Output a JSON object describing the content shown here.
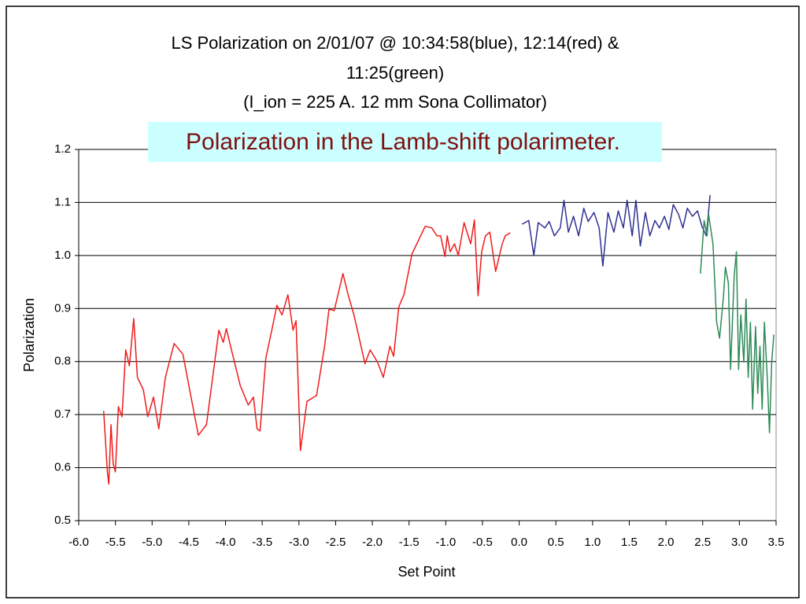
{
  "chart_data": {
    "type": "line",
    "title": [
      "LS Polarization on 2/01/07 @ 10:34:58(blue), 12:14(red) &",
      "11:25(green)",
      "(I_ion = 225 A. 12 mm Sona Collimator)"
    ],
    "annotation": "Polarization in the Lamb-shift polarimeter.",
    "xlabel": "Set Point",
    "ylabel": "Polarization",
    "xlim": [
      -6,
      3.5
    ],
    "ylim": [
      0.5,
      1.2
    ],
    "xticks": [
      {
        "value": -6,
        "label": "-6.0"
      },
      -5.5,
      {
        "value": -5,
        "label": "-5.0"
      },
      -4.5,
      {
        "value": -4,
        "label": "-4.0"
      },
      -3.5,
      {
        "value": -3,
        "label": "-3.0"
      },
      -2.5,
      {
        "value": -2,
        "label": "-2.0"
      },
      -1.5,
      {
        "value": -1,
        "label": "-1.0"
      },
      -0.5,
      {
        "value": 0,
        "label": "0.0"
      },
      0.5,
      {
        "value": 1,
        "label": "1.0"
      },
      1.5,
      {
        "value": 2,
        "label": "2.0"
      },
      2.5,
      {
        "value": 3,
        "label": "3.0"
      },
      3.5
    ],
    "yticks": [
      0.5,
      0.6,
      0.7,
      0.8,
      0.9,
      {
        "value": 1,
        "label": "1.0"
      },
      1.1,
      1.2
    ],
    "grid": true,
    "series": [
      {
        "color": "#ee1c1c",
        "x": [
          -5.66,
          -5.61,
          -5.59,
          -5.56,
          -5.53,
          -5.5,
          -5.46,
          -5.41,
          -5.36,
          -5.31,
          -5.25,
          -5.2,
          -5.12,
          -5.06,
          -4.98,
          -4.91,
          -4.82,
          -4.7,
          -4.58,
          -4.5,
          -4.37,
          -4.26,
          -4.09,
          -4.03,
          -3.99,
          -3.91,
          -3.8,
          -3.69,
          -3.62,
          -3.57,
          -3.53,
          -3.45,
          -3.37,
          -3.3,
          -3.23,
          -3.15,
          -3.08,
          -3.04,
          -2.98,
          -2.89,
          -2.76,
          -2.65,
          -2.59,
          -2.52,
          -2.4,
          -2.33,
          -2.25,
          -2.1,
          -2.03,
          -1.93,
          -1.85,
          -1.76,
          -1.71,
          -1.64,
          -1.57,
          -1.52,
          -1.46,
          -1.37,
          -1.28,
          -1.19,
          -1.12,
          -1.07,
          -1.01,
          -0.98,
          -0.94,
          -0.88,
          -0.83,
          -0.75,
          -0.66,
          -0.61,
          -0.56,
          -0.51,
          -0.46,
          -0.4,
          -0.32,
          -0.23,
          -0.19,
          -0.12
        ],
        "values": [
          0.707,
          0.592,
          0.569,
          0.681,
          0.607,
          0.592,
          0.715,
          0.696,
          0.822,
          0.792,
          0.881,
          0.77,
          0.747,
          0.696,
          0.733,
          0.673,
          0.77,
          0.834,
          0.814,
          0.755,
          0.661,
          0.681,
          0.859,
          0.836,
          0.862,
          0.817,
          0.755,
          0.718,
          0.733,
          0.673,
          0.669,
          0.807,
          0.859,
          0.906,
          0.888,
          0.926,
          0.859,
          0.877,
          0.632,
          0.725,
          0.736,
          0.829,
          0.899,
          0.896,
          0.966,
          0.926,
          0.888,
          0.796,
          0.822,
          0.799,
          0.77,
          0.829,
          0.81,
          0.903,
          0.926,
          0.96,
          1.003,
          1.029,
          1.055,
          1.052,
          1.037,
          1.037,
          0.998,
          1.037,
          1.007,
          1.022,
          1.0,
          1.062,
          1.022,
          1.067,
          0.924,
          1.007,
          1.037,
          1.044,
          0.97,
          1.022,
          1.037,
          1.043
        ]
      },
      {
        "color": "#2e3192",
        "x": [
          0.04,
          0.13,
          0.2,
          0.26,
          0.35,
          0.41,
          0.48,
          0.56,
          0.61,
          0.67,
          0.74,
          0.81,
          0.88,
          0.94,
          1.02,
          1.09,
          1.14,
          1.21,
          1.29,
          1.35,
          1.42,
          1.47,
          1.54,
          1.59,
          1.65,
          1.72,
          1.78,
          1.85,
          1.91,
          1.98,
          2.04,
          2.1,
          2.17,
          2.23,
          2.29,
          2.36,
          2.43,
          2.49,
          2.55,
          2.6
        ],
        "values": [
          1.059,
          1.066,
          1.0,
          1.062,
          1.052,
          1.064,
          1.037,
          1.052,
          1.104,
          1.044,
          1.074,
          1.037,
          1.089,
          1.064,
          1.081,
          1.052,
          0.98,
          1.081,
          1.044,
          1.084,
          1.052,
          1.104,
          1.037,
          1.104,
          1.018,
          1.081,
          1.037,
          1.066,
          1.052,
          1.074,
          1.049,
          1.096,
          1.078,
          1.052,
          1.089,
          1.074,
          1.084,
          1.055,
          1.037,
          1.114
        ]
      },
      {
        "color": "#2e8b57",
        "x": [
          2.47,
          2.52,
          2.56,
          2.58,
          2.64,
          2.69,
          2.73,
          2.78,
          2.81,
          2.85,
          2.88,
          2.93,
          2.96,
          2.99,
          3.02,
          3.06,
          3.09,
          3.12,
          3.15,
          3.18,
          3.22,
          3.25,
          3.28,
          3.31,
          3.34,
          3.38,
          3.41,
          3.44,
          3.47
        ],
        "values": [
          0.966,
          1.066,
          1.037,
          1.078,
          1.022,
          0.874,
          0.844,
          0.918,
          0.978,
          0.948,
          0.785,
          0.963,
          1.007,
          0.785,
          0.888,
          0.799,
          0.918,
          0.77,
          0.874,
          0.71,
          0.866,
          0.74,
          0.829,
          0.71,
          0.874,
          0.77,
          0.666,
          0.799,
          0.851
        ]
      }
    ]
  }
}
